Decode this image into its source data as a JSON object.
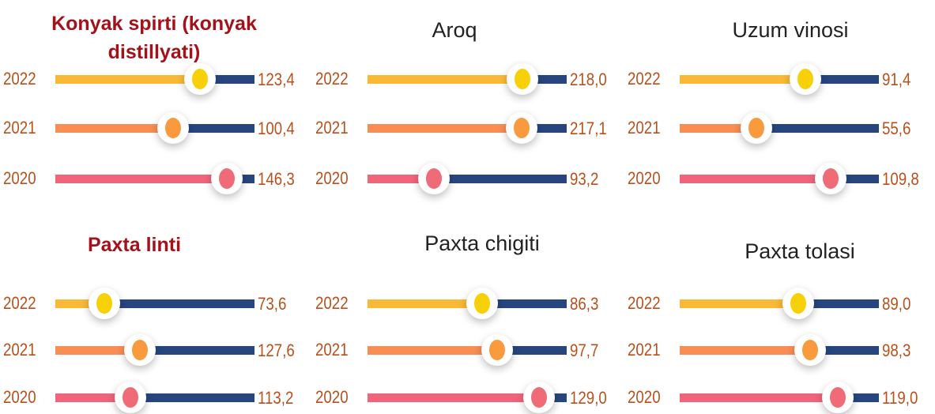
{
  "chart_data": [
    {
      "type": "slider",
      "title": "Konyak spirti (konyak distillyati)",
      "title_bold": true,
      "title_color": "#a3121b",
      "categories": [
        "2022",
        "2021",
        "2020"
      ],
      "values": [
        123.4,
        100.4,
        146.3
      ],
      "value_labels": [
        "123,4",
        "100,4",
        "146,3"
      ],
      "colors": [
        "#f9b936",
        "#f98d52",
        "#f2647a"
      ],
      "knob_colors": [
        "#f7d008",
        "#f99a3f",
        "#ef6b78"
      ],
      "track_color": "#27467f",
      "xlim": [
        0,
        170
      ]
    },
    {
      "type": "slider",
      "title": "Aroq",
      "title_bold": false,
      "title_color": "#a3121b",
      "categories": [
        "2022",
        "2021",
        "2020"
      ],
      "values": [
        218.0,
        217.1,
        93.2
      ],
      "value_labels": [
        "218,0",
        "217,1",
        "93,2"
      ],
      "colors": [
        "#f9b936",
        "#f98d52",
        "#f2647a"
      ],
      "knob_colors": [
        "#f7d008",
        "#f99a3f",
        "#ef6b78"
      ],
      "track_color": "#27467f",
      "xlim": [
        0,
        280
      ]
    },
    {
      "type": "slider",
      "title": "Uzum vinosi",
      "title_bold": false,
      "title_color": "#a3121b",
      "categories": [
        "2022",
        "2021",
        "2020"
      ],
      "values": [
        91.4,
        55.6,
        109.8
      ],
      "value_labels": [
        "91,4",
        "55,6",
        "109,8"
      ],
      "colors": [
        "#f9b936",
        "#f98d52",
        "#f2647a"
      ],
      "knob_colors": [
        "#f7d008",
        "#f99a3f",
        "#ef6b78"
      ],
      "track_color": "#27467f",
      "xlim": [
        0,
        145
      ]
    },
    {
      "type": "slider",
      "title": "Paxta linti",
      "title_bold": true,
      "title_color": "#a3121b",
      "categories": [
        "2022",
        "2021",
        "2020"
      ],
      "values": [
        73.6,
        127.6,
        113.2
      ],
      "value_labels": [
        "73,6",
        "127,6",
        "113,2"
      ],
      "colors": [
        "#f9b936",
        "#f98d52",
        "#f2647a"
      ],
      "knob_colors": [
        "#f7d008",
        "#f99a3f",
        "#ef6b78"
      ],
      "track_color": "#27467f",
      "xlim": [
        0,
        300
      ]
    },
    {
      "type": "slider",
      "title": "Paxta chigiti",
      "title_bold": false,
      "title_color": "#a3121b",
      "categories": [
        "2022",
        "2021",
        "2020"
      ],
      "values": [
        86.3,
        97.7,
        129.0
      ],
      "value_labels": [
        "86,3",
        "97,7",
        "129,0"
      ],
      "colors": [
        "#f9b936",
        "#f98d52",
        "#f2647a"
      ],
      "knob_colors": [
        "#f7d008",
        "#f99a3f",
        "#ef6b78"
      ],
      "track_color": "#27467f",
      "xlim": [
        0,
        150
      ]
    },
    {
      "type": "slider",
      "title": "Paxta tolasi",
      "title_bold": false,
      "title_color": "#a3121b",
      "categories": [
        "2022",
        "2021",
        "2020"
      ],
      "values": [
        89.0,
        98.3,
        119.0
      ],
      "value_labels": [
        "89,0",
        "98,3",
        "119,0"
      ],
      "colors": [
        "#f9b936",
        "#f98d52",
        "#f2647a"
      ],
      "knob_colors": [
        "#f7d008",
        "#f99a3f",
        "#ef6b78"
      ],
      "track_color": "#27467f",
      "xlim": [
        0,
        150
      ]
    }
  ]
}
